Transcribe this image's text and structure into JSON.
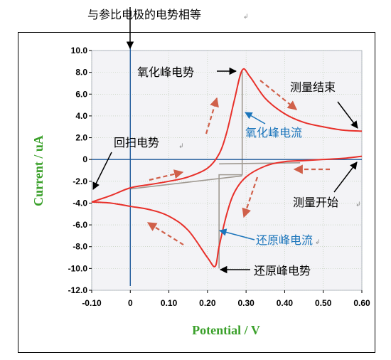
{
  "chart_data": {
    "type": "line",
    "xlabel": "Potential / V",
    "ylabel": "Current / uA",
    "xlim": [
      -0.1,
      0.6
    ],
    "ylim": [
      -12.0,
      10.0
    ],
    "x_ticks": [
      "-0.10",
      "0",
      "0.10",
      "0.20",
      "0.30",
      "0.40",
      "0.50",
      "0.60"
    ],
    "y_ticks": [
      "10.0",
      "8.0",
      "6.0",
      "4.0",
      "2.0",
      "0",
      "-2.0",
      "-4.0",
      "-6.0",
      "-8.0",
      "-10.0",
      "-12.0"
    ],
    "grid": true,
    "series": [
      {
        "color": "#e8302a",
        "x": [
          0.6,
          0.55,
          0.5,
          0.45,
          0.4,
          0.35,
          0.3,
          0.27,
          0.25,
          0.23,
          0.22,
          0.2,
          0.15,
          0.1,
          0.05,
          0.0,
          -0.05,
          -0.1
        ],
        "y": [
          0.3,
          0.1,
          0.0,
          -0.1,
          -0.2,
          -0.6,
          -1.6,
          -3.0,
          -5.0,
          -8.0,
          -9.8,
          -9.0,
          -6.5,
          -5.2,
          -4.6,
          -4.3,
          -4.0,
          -3.9
        ]
      },
      {
        "color": "#e8302a",
        "x": [
          -0.1,
          -0.05,
          0.0,
          0.05,
          0.1,
          0.15,
          0.2,
          0.23,
          0.25,
          0.27,
          0.29,
          0.31,
          0.35,
          0.4,
          0.45,
          0.5,
          0.55,
          0.6
        ],
        "y": [
          -3.9,
          -3.3,
          -2.6,
          -2.3,
          -2.0,
          -1.6,
          -0.8,
          0.5,
          2.5,
          5.5,
          8.2,
          7.6,
          5.6,
          4.2,
          3.4,
          3.0,
          2.7,
          2.6
        ]
      }
    ],
    "vertical_marker": {
      "x": 0.0,
      "label": "与参比电极的电势相等"
    },
    "reference_lines": [
      {
        "color": "#a09a92",
        "points": [
          [
            0.23,
            -10.0
          ],
          [
            0.23,
            -1.4
          ],
          [
            0.29,
            -1.4
          ],
          [
            0.29,
            8.2
          ]
        ]
      },
      {
        "color": "#a09a92",
        "points": [
          [
            0.0,
            -2.7
          ],
          [
            0.29,
            -1.5
          ]
        ]
      },
      {
        "color": "#a09a92",
        "points": [
          [
            0.23,
            -0.4
          ],
          [
            0.44,
            -0.3
          ]
        ]
      }
    ],
    "annotations": [
      {
        "id": "oxidation-peak-potential",
        "text": "氧化峰电势",
        "color": "#000000"
      },
      {
        "id": "measurement-end",
        "text": "测量结束",
        "color": "#000000"
      },
      {
        "id": "oxidation-peak-current",
        "text": "氧化峰电流",
        "color": "#1b75bb"
      },
      {
        "id": "reverse-scan-potential",
        "text": "回扫电势",
        "color": "#000000"
      },
      {
        "id": "measurement-start",
        "text": "测量开始",
        "color": "#000000"
      },
      {
        "id": "reduction-peak-current",
        "text": "还原峰电流",
        "color": "#1b75bb"
      },
      {
        "id": "reduction-peak-potential",
        "text": "还原峰电势",
        "color": "#000000"
      }
    ],
    "colors": {
      "curve": "#e8302a",
      "axis_label": "#3aa02a",
      "plot_background": "#f3f3f6",
      "grid": "#b8c8b0",
      "axis_lines": "#1e5a9a"
    }
  }
}
